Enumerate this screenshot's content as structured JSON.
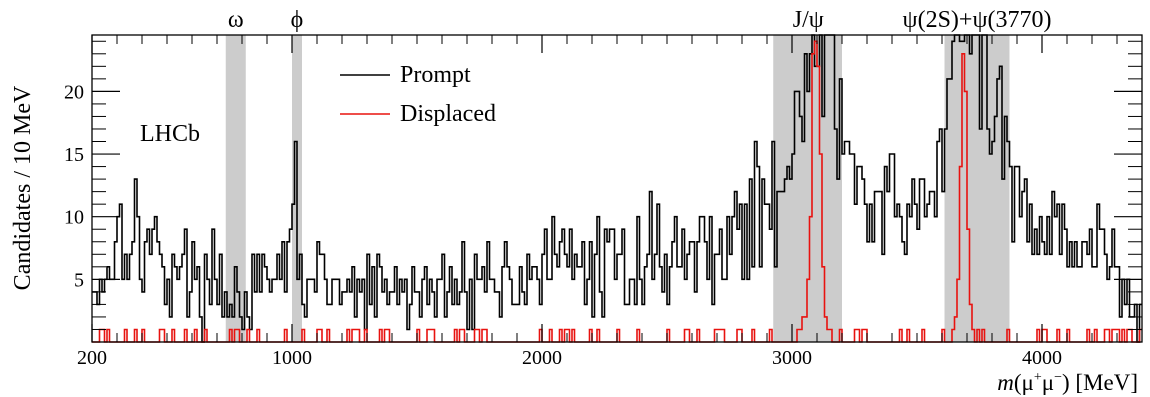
{
  "chart_data": {
    "type": "histogram",
    "x_axis": {
      "label_main": "m",
      "label_mid": "(μ",
      "label_plus": "+",
      "label_mu2": "μ",
      "label_minus": "−",
      "label_end": ") [MeV]",
      "range": [
        200,
        4400
      ],
      "ticks": [
        200,
        1000,
        2000,
        3000,
        4000
      ],
      "tick_labels": [
        "200",
        "1000",
        "2000",
        "3000",
        "4000"
      ]
    },
    "y_axis": {
      "label": "Candidates / 10 MeV",
      "range": [
        0,
        24.5
      ],
      "ticks": [
        5,
        10,
        15,
        20
      ],
      "tick_labels": [
        "5",
        "10",
        "15",
        "20"
      ]
    },
    "experiment_label": "LHCb",
    "legend": {
      "position": "top-center",
      "entries": [
        {
          "name": "Prompt",
          "color": "#000000"
        },
        {
          "name": "Displaced",
          "color": "#e8120f"
        }
      ]
    },
    "resonances": [
      {
        "label": "ω",
        "band": [
          735,
          815
        ],
        "label_x": 775
      },
      {
        "label": "ϕ",
        "band": [
          1000,
          1040
        ],
        "label_x": 1020
      },
      {
        "label": "J/ψ",
        "band": [
          2925,
          3200
        ],
        "label_x": 3065
      },
      {
        "label": "ψ(2S)+ψ(3770)",
        "band": [
          3610,
          3870
        ],
        "label_x": 3740
      }
    ],
    "band_color": "#cccccc",
    "bin_width": 10,
    "series": [
      {
        "name": "Prompt",
        "color": "#000000",
        "keypoints": [
          [
            200,
            4
          ],
          [
            230,
            5
          ],
          [
            280,
            6
          ],
          [
            320,
            10
          ],
          [
            350,
            9
          ],
          [
            400,
            8
          ],
          [
            450,
            7
          ],
          [
            500,
            6
          ],
          [
            550,
            6
          ],
          [
            600,
            5
          ],
          [
            650,
            5
          ],
          [
            700,
            5
          ],
          [
            750,
            4
          ],
          [
            800,
            3
          ],
          [
            850,
            4
          ],
          [
            900,
            4
          ],
          [
            950,
            5
          ],
          [
            980,
            6
          ],
          [
            1000,
            8
          ],
          [
            1010,
            13
          ],
          [
            1020,
            8
          ],
          [
            1040,
            5
          ],
          [
            1100,
            5
          ],
          [
            1200,
            4
          ],
          [
            1300,
            4
          ],
          [
            1400,
            4
          ],
          [
            1500,
            4
          ],
          [
            1600,
            4
          ],
          [
            1700,
            5
          ],
          [
            1800,
            5
          ],
          [
            1900,
            5
          ],
          [
            1950,
            6
          ],
          [
            2000,
            6
          ],
          [
            2100,
            6
          ],
          [
            2200,
            6
          ],
          [
            2300,
            6
          ],
          [
            2400,
            7
          ],
          [
            2500,
            7
          ],
          [
            2600,
            7
          ],
          [
            2700,
            8
          ],
          [
            2800,
            9
          ],
          [
            2870,
            10
          ],
          [
            2950,
            12
          ],
          [
            3000,
            16
          ],
          [
            3030,
            21
          ],
          [
            3050,
            24
          ],
          [
            3096,
            24
          ],
          [
            3140,
            24
          ],
          [
            3180,
            20
          ],
          [
            3230,
            14
          ],
          [
            3300,
            11
          ],
          [
            3400,
            10
          ],
          [
            3500,
            10
          ],
          [
            3560,
            12
          ],
          [
            3620,
            18
          ],
          [
            3660,
            24
          ],
          [
            3700,
            24
          ],
          [
            3760,
            22
          ],
          [
            3800,
            18
          ],
          [
            3860,
            14
          ],
          [
            3920,
            11
          ],
          [
            4000,
            10
          ],
          [
            4100,
            9
          ],
          [
            4200,
            8
          ],
          [
            4300,
            5
          ],
          [
            4380,
            2
          ],
          [
            4400,
            2
          ]
        ]
      },
      {
        "name": "Displaced",
        "color": "#e8120f",
        "keypoints": [
          [
            200,
            0.4
          ],
          [
            1000,
            0.3
          ],
          [
            2000,
            0.3
          ],
          [
            2900,
            0.4
          ],
          [
            3000,
            0.5
          ],
          [
            3060,
            2
          ],
          [
            3075,
            10
          ],
          [
            3082,
            22
          ],
          [
            3090,
            24
          ],
          [
            3100,
            24
          ],
          [
            3110,
            20
          ],
          [
            3120,
            9
          ],
          [
            3130,
            3
          ],
          [
            3145,
            0.6
          ],
          [
            3600,
            0.4
          ],
          [
            3650,
            0.8
          ],
          [
            3670,
            6
          ],
          [
            3678,
            18
          ],
          [
            3686,
            24
          ],
          [
            3692,
            24
          ],
          [
            3700,
            14
          ],
          [
            3710,
            4
          ],
          [
            3725,
            0.6
          ],
          [
            4400,
            0.3
          ]
        ]
      }
    ]
  }
}
